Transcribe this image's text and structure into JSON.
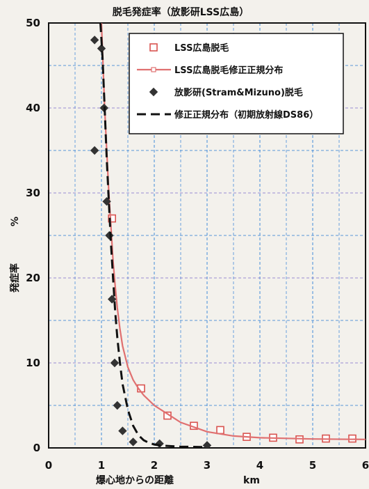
{
  "chart_data": {
    "type": "line",
    "title": "脱毛発症率（放影研LSS広島）",
    "xlabel": "爆心地からの距離",
    "xlabel_unit": "km",
    "ylabel": "発症率",
    "ylabel_unit": "%",
    "xlim": [
      0,
      6
    ],
    "ylim": [
      0,
      50
    ],
    "x_ticks": [
      0,
      1,
      2,
      3,
      4,
      5,
      6
    ],
    "y_ticks": [
      0,
      10,
      20,
      30,
      40,
      50
    ],
    "x_minor_step": 0.5,
    "y_minor_step": 5,
    "grid": true,
    "legend_position": "top-right",
    "colors": {
      "lss_marker": "#d9534f",
      "lss_fit": "#e07070",
      "rerf_marker": "#333333",
      "rerf_fit": "#111111",
      "grid": "#4a8fd8",
      "grid_minor": "#8f7fd0"
    },
    "series": [
      {
        "name": "LSS広島脱毛",
        "kind": "scatter",
        "marker": "open-square",
        "x": [
          1.2,
          1.75,
          2.25,
          2.75,
          3.25,
          3.75,
          4.25,
          4.75,
          5.25,
          5.75
        ],
        "y": [
          27,
          7,
          3.8,
          2.6,
          2.1,
          1.3,
          1.2,
          1.0,
          1.1,
          1.1
        ]
      },
      {
        "name": "LSS広島脱毛修正正規分布",
        "kind": "line",
        "style": "solid",
        "x": [
          1.0,
          1.03,
          1.06,
          1.1,
          1.14,
          1.18,
          1.22,
          1.26,
          1.3,
          1.35,
          1.4,
          1.5,
          1.6,
          1.7,
          1.8,
          2.0,
          2.2,
          2.5,
          3.0,
          3.5,
          4.0,
          5.0,
          6.0
        ],
        "y": [
          50,
          45,
          40,
          35,
          30,
          26,
          22,
          19,
          16.5,
          14,
          12,
          9.5,
          8,
          7,
          6.2,
          5,
          4.2,
          3,
          1.9,
          1.4,
          1.2,
          1.05,
          1.0
        ]
      },
      {
        "name": "放影研(Stram&Mizuno)脱毛",
        "kind": "scatter",
        "marker": "filled-diamond",
        "x": [
          0.87,
          0.87,
          1.0,
          1.05,
          1.1,
          1.15,
          1.2,
          1.25,
          1.3,
          1.4,
          1.6,
          2.1,
          3.0
        ],
        "y": [
          48,
          35,
          47,
          40,
          29,
          25,
          17.5,
          10,
          5,
          2,
          0.7,
          0.5,
          0.3
        ]
      },
      {
        "name": "修正正規分布（初期放射線DS86）",
        "kind": "line",
        "style": "dashed",
        "x": [
          0.98,
          1.02,
          1.06,
          1.1,
          1.14,
          1.18,
          1.22,
          1.26,
          1.3,
          1.35,
          1.4,
          1.5,
          1.6,
          1.7,
          1.8,
          1.9,
          2.0,
          2.1,
          2.2,
          2.5,
          3.0
        ],
        "y": [
          50,
          46,
          40,
          34,
          29,
          24,
          20,
          16,
          13,
          10,
          7.5,
          4.5,
          2.6,
          1.5,
          0.9,
          0.6,
          0.4,
          0.3,
          0.25,
          0.15,
          0.1
        ]
      }
    ]
  }
}
